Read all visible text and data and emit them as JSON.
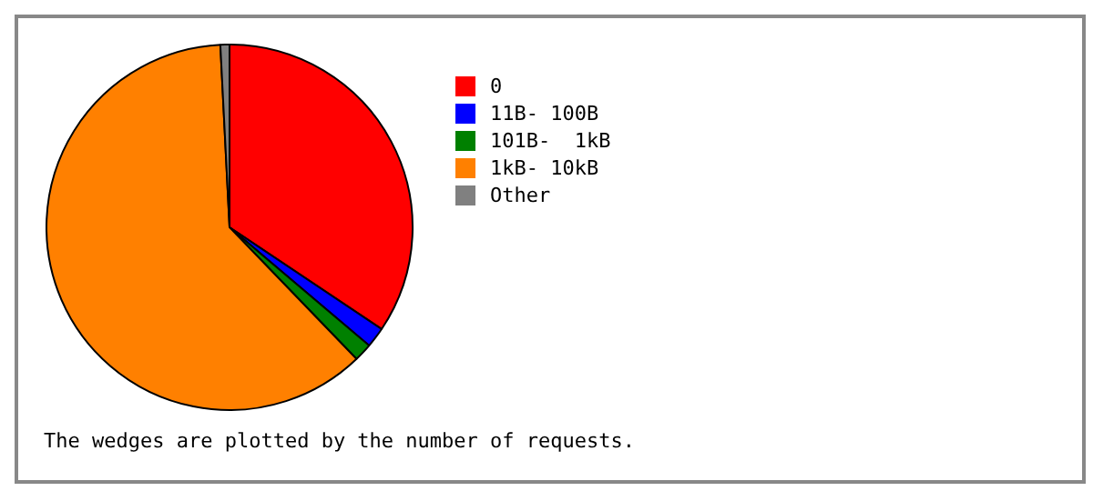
{
  "chart_data": {
    "type": "pie",
    "categories": [
      "0",
      "11B- 100B",
      "101B-  1kB",
      "1kB- 10kB",
      "Other"
    ],
    "values": [
      34.4,
      1.8,
      1.6,
      61.4,
      0.8
    ],
    "colors": [
      "#ff0000",
      "#0000ff",
      "#008000",
      "#ff8000",
      "#808080"
    ],
    "legend": "right",
    "annotations": [
      "The wedges are plotted by the number of requests."
    ]
  }
}
